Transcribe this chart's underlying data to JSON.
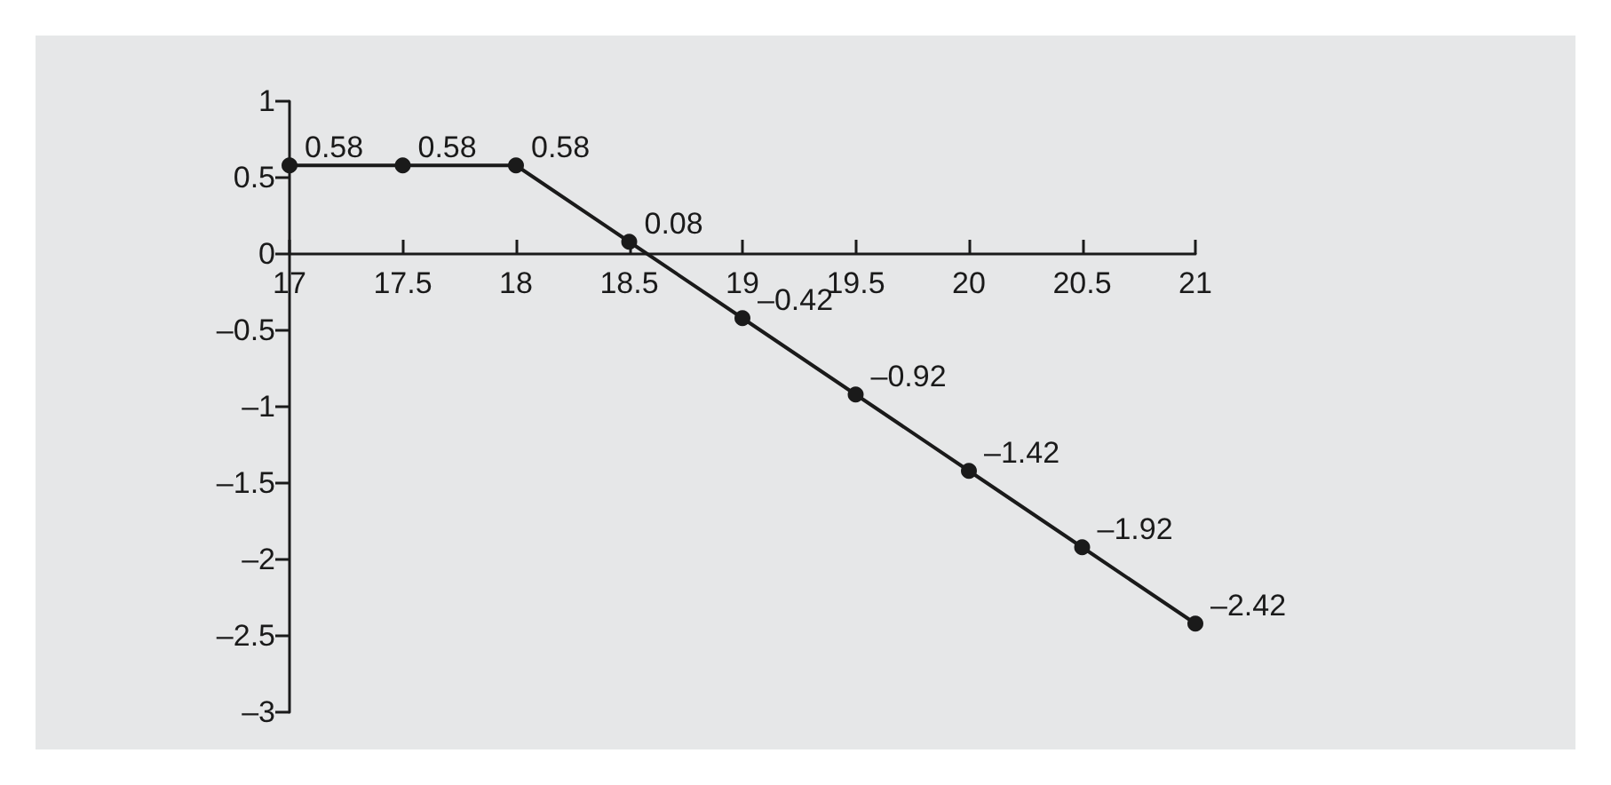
{
  "chart_data": {
    "type": "line",
    "x": [
      17,
      17.5,
      18,
      18.5,
      19,
      19.5,
      20,
      20.5,
      21
    ],
    "values": [
      0.58,
      0.58,
      0.58,
      0.08,
      -0.42,
      -0.92,
      -1.42,
      -1.92,
      -2.42
    ],
    "value_labels": [
      "0.58",
      "0.58",
      "0.58",
      "0.08",
      "–0.42",
      "–0.92",
      "–1.42",
      "–1.92",
      "–2.42"
    ],
    "color": "#1a1a1a",
    "marker": "circle",
    "line_style": "solid",
    "xlim": [
      17,
      21
    ],
    "xticks": [
      17,
      17.5,
      18,
      18.5,
      19,
      19.5,
      20,
      20.5,
      21
    ],
    "ylim": [
      -3,
      1
    ],
    "yticks": [
      {
        "value": -3,
        "label": "–3"
      },
      {
        "value": -2.5,
        "label": "–2.5"
      },
      {
        "value": -2,
        "label": "–2"
      },
      {
        "value": -1.5,
        "label": "–1.5"
      },
      {
        "value": -1,
        "label": "–1"
      },
      {
        "value": -0.5,
        "label": "–0.5"
      },
      0,
      0.5,
      1
    ]
  }
}
